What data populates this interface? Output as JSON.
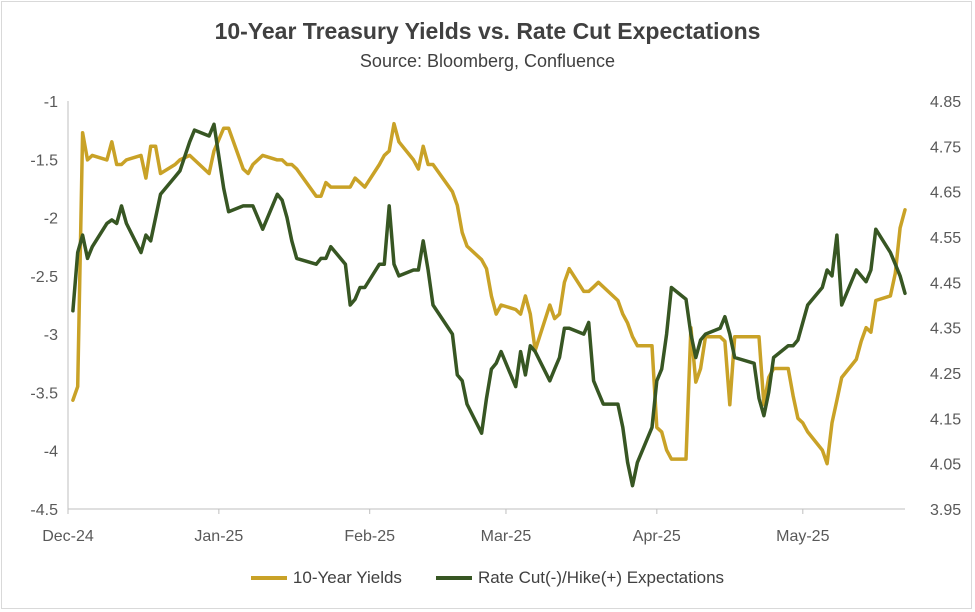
{
  "chart_data": {
    "type": "line",
    "title": "10-Year Treasury Yields vs. Rate Cut Expectations",
    "subtitle": "Source: Bloomberg, Confluence",
    "x_tick_labels": [
      "Dec-24",
      "Jan-25",
      "Feb-25",
      "Mar-25",
      "Apr-25",
      "May-25"
    ],
    "x_tick_dates": [
      "2024-12-01",
      "2025-01-01",
      "2025-02-01",
      "2025-03-01",
      "2025-04-01",
      "2025-05-01"
    ],
    "x_range": [
      "2024-12-01",
      "2025-05-22"
    ],
    "y_left": {
      "min": -4.5,
      "max": -1,
      "ticks": [
        "-1",
        "-1.5",
        "-2",
        "-2.5",
        "-3",
        "-3.5",
        "-4",
        "-4.5"
      ]
    },
    "y_right": {
      "min": 3.95,
      "max": 4.85,
      "ticks": [
        "4.85",
        "4.75",
        "4.65",
        "4.55",
        "4.45",
        "4.35",
        "4.25",
        "4.15",
        "4.05",
        "3.95"
      ]
    },
    "grid": false,
    "legend_position": "bottom",
    "series": [
      {
        "name": "10-Year Yields",
        "axis": "right",
        "color": "#C9A227",
        "points": [
          [
            "2024-12-02",
            4.19
          ],
          [
            "2024-12-03",
            4.22
          ],
          [
            "2024-12-04",
            4.78
          ],
          [
            "2024-12-05",
            4.72
          ],
          [
            "2024-12-06",
            4.73
          ],
          [
            "2024-12-09",
            4.72
          ],
          [
            "2024-12-10",
            4.76
          ],
          [
            "2024-12-11",
            4.71
          ],
          [
            "2024-12-12",
            4.71
          ],
          [
            "2024-12-13",
            4.72
          ],
          [
            "2024-12-16",
            4.73
          ],
          [
            "2024-12-17",
            4.68
          ],
          [
            "2024-12-18",
            4.75
          ],
          [
            "2024-12-19",
            4.75
          ],
          [
            "2024-12-20",
            4.69
          ],
          [
            "2024-12-23",
            4.71
          ],
          [
            "2024-12-24",
            4.72
          ],
          [
            "2024-12-26",
            4.73
          ],
          [
            "2024-12-27",
            4.72
          ],
          [
            "2024-12-30",
            4.69
          ],
          [
            "2024-12-31",
            4.74
          ],
          [
            "2025-01-02",
            4.79
          ],
          [
            "2025-01-03",
            4.79
          ],
          [
            "2025-01-06",
            4.7
          ],
          [
            "2025-01-07",
            4.69
          ],
          [
            "2025-01-08",
            4.71
          ],
          [
            "2025-01-10",
            4.73
          ],
          [
            "2025-01-13",
            4.72
          ],
          [
            "2025-01-14",
            4.72
          ],
          [
            "2025-01-15",
            4.71
          ],
          [
            "2025-01-16",
            4.71
          ],
          [
            "2025-01-17",
            4.7
          ],
          [
            "2025-01-21",
            4.64
          ],
          [
            "2025-01-22",
            4.64
          ],
          [
            "2025-01-23",
            4.67
          ],
          [
            "2025-01-24",
            4.66
          ],
          [
            "2025-01-27",
            4.66
          ],
          [
            "2025-01-28",
            4.66
          ],
          [
            "2025-01-29",
            4.68
          ],
          [
            "2025-01-30",
            4.67
          ],
          [
            "2025-01-31",
            4.66
          ],
          [
            "2025-02-03",
            4.71
          ],
          [
            "2025-02-04",
            4.73
          ],
          [
            "2025-02-05",
            4.74
          ],
          [
            "2025-02-06",
            4.8
          ],
          [
            "2025-02-07",
            4.76
          ],
          [
            "2025-02-10",
            4.72
          ],
          [
            "2025-02-11",
            4.7
          ],
          [
            "2025-02-12",
            4.75
          ],
          [
            "2025-02-13",
            4.71
          ],
          [
            "2025-02-14",
            4.71
          ],
          [
            "2025-02-18",
            4.65
          ],
          [
            "2025-02-19",
            4.62
          ],
          [
            "2025-02-20",
            4.56
          ],
          [
            "2025-02-21",
            4.53
          ],
          [
            "2025-02-24",
            4.5
          ],
          [
            "2025-02-25",
            4.48
          ],
          [
            "2025-02-26",
            4.42
          ],
          [
            "2025-02-27",
            4.38
          ],
          [
            "2025-02-28",
            4.4
          ],
          [
            "2025-03-03",
            4.39
          ],
          [
            "2025-03-04",
            4.38
          ],
          [
            "2025-03-05",
            4.42
          ],
          [
            "2025-03-06",
            4.38
          ],
          [
            "2025-03-07",
            4.3
          ],
          [
            "2025-03-10",
            4.4
          ],
          [
            "2025-03-11",
            4.37
          ],
          [
            "2025-03-12",
            4.38
          ],
          [
            "2025-03-13",
            4.45
          ],
          [
            "2025-03-14",
            4.48
          ],
          [
            "2025-03-17",
            4.43
          ],
          [
            "2025-03-18",
            4.43
          ],
          [
            "2025-03-19",
            4.44
          ],
          [
            "2025-03-20",
            4.45
          ],
          [
            "2025-03-21",
            4.44
          ],
          [
            "2025-03-24",
            4.41
          ],
          [
            "2025-03-25",
            4.38
          ],
          [
            "2025-03-26",
            4.36
          ],
          [
            "2025-03-27",
            4.33
          ],
          [
            "2025-03-28",
            4.31
          ],
          [
            "2025-03-31",
            4.31
          ],
          [
            "2025-04-01",
            4.13
          ],
          [
            "2025-04-02",
            4.12
          ],
          [
            "2025-04-03",
            4.08
          ],
          [
            "2025-04-04",
            4.06
          ],
          [
            "2025-04-07",
            4.06
          ],
          [
            "2025-04-08",
            4.35
          ],
          [
            "2025-04-09",
            4.23
          ],
          [
            "2025-04-10",
            4.26
          ],
          [
            "2025-04-11",
            4.33
          ],
          [
            "2025-04-14",
            4.33
          ],
          [
            "2025-04-15",
            4.32
          ],
          [
            "2025-04-16",
            4.18
          ],
          [
            "2025-04-17",
            4.33
          ],
          [
            "2025-04-21",
            4.33
          ],
          [
            "2025-04-22",
            4.33
          ],
          [
            "2025-04-23",
            4.18
          ],
          [
            "2025-04-24",
            4.24
          ],
          [
            "2025-04-25",
            4.26
          ],
          [
            "2025-04-28",
            4.26
          ],
          [
            "2025-04-29",
            4.2
          ],
          [
            "2025-04-30",
            4.15
          ],
          [
            "2025-05-01",
            4.14
          ],
          [
            "2025-05-02",
            4.12
          ],
          [
            "2025-05-05",
            4.08
          ],
          [
            "2025-05-06",
            4.05
          ],
          [
            "2025-05-07",
            4.14
          ],
          [
            "2025-05-08",
            4.19
          ],
          [
            "2025-05-09",
            4.24
          ],
          [
            "2025-05-12",
            4.28
          ],
          [
            "2025-05-13",
            4.32
          ],
          [
            "2025-05-14",
            4.35
          ],
          [
            "2025-05-15",
            4.34
          ],
          [
            "2025-05-16",
            4.41
          ],
          [
            "2025-05-19",
            4.42
          ],
          [
            "2025-05-20",
            4.47
          ],
          [
            "2025-05-21",
            4.57
          ],
          [
            "2025-05-22",
            4.61
          ]
        ]
      },
      {
        "name": "Rate Cut(-)/Hike(+) Expectations",
        "axis": "left",
        "color": "#375623",
        "points": [
          [
            "2024-12-02",
            -2.8
          ],
          [
            "2024-12-03",
            -2.3
          ],
          [
            "2024-12-04",
            -2.15
          ],
          [
            "2024-12-05",
            -2.35
          ],
          [
            "2024-12-06",
            -2.25
          ],
          [
            "2024-12-09",
            -2.05
          ],
          [
            "2024-12-10",
            -2.02
          ],
          [
            "2024-12-11",
            -2.05
          ],
          [
            "2024-12-12",
            -1.9
          ],
          [
            "2024-12-13",
            -2.05
          ],
          [
            "2024-12-16",
            -2.3
          ],
          [
            "2024-12-17",
            -2.15
          ],
          [
            "2024-12-18",
            -2.2
          ],
          [
            "2024-12-19",
            -2.0
          ],
          [
            "2024-12-20",
            -1.8
          ],
          [
            "2024-12-23",
            -1.65
          ],
          [
            "2024-12-24",
            -1.6
          ],
          [
            "2024-12-26",
            -1.35
          ],
          [
            "2024-12-27",
            -1.25
          ],
          [
            "2024-12-30",
            -1.3
          ],
          [
            "2024-12-31",
            -1.2
          ],
          [
            "2025-01-02",
            -1.75
          ],
          [
            "2025-01-03",
            -1.95
          ],
          [
            "2025-01-06",
            -1.9
          ],
          [
            "2025-01-07",
            -1.9
          ],
          [
            "2025-01-08",
            -1.9
          ],
          [
            "2025-01-10",
            -2.1
          ],
          [
            "2025-01-13",
            -1.8
          ],
          [
            "2025-01-14",
            -1.85
          ],
          [
            "2025-01-15",
            -2.0
          ],
          [
            "2025-01-16",
            -2.2
          ],
          [
            "2025-01-17",
            -2.35
          ],
          [
            "2025-01-21",
            -2.4
          ],
          [
            "2025-01-22",
            -2.35
          ],
          [
            "2025-01-23",
            -2.35
          ],
          [
            "2025-01-24",
            -2.25
          ],
          [
            "2025-01-27",
            -2.4
          ],
          [
            "2025-01-28",
            -2.75
          ],
          [
            "2025-01-29",
            -2.7
          ],
          [
            "2025-01-30",
            -2.6
          ],
          [
            "2025-01-31",
            -2.6
          ],
          [
            "2025-02-03",
            -2.4
          ],
          [
            "2025-02-04",
            -2.4
          ],
          [
            "2025-02-05",
            -1.9
          ],
          [
            "2025-02-06",
            -2.4
          ],
          [
            "2025-02-07",
            -2.5
          ],
          [
            "2025-02-10",
            -2.45
          ],
          [
            "2025-02-11",
            -2.45
          ],
          [
            "2025-02-12",
            -2.2
          ],
          [
            "2025-02-13",
            -2.45
          ],
          [
            "2025-02-14",
            -2.75
          ],
          [
            "2025-02-18",
            -3.0
          ],
          [
            "2025-02-19",
            -3.35
          ],
          [
            "2025-02-20",
            -3.4
          ],
          [
            "2025-02-21",
            -3.6
          ],
          [
            "2025-02-24",
            -3.85
          ],
          [
            "2025-02-25",
            -3.55
          ],
          [
            "2025-02-26",
            -3.3
          ],
          [
            "2025-02-27",
            -3.25
          ],
          [
            "2025-02-28",
            -3.15
          ],
          [
            "2025-03-03",
            -3.45
          ],
          [
            "2025-03-04",
            -3.15
          ],
          [
            "2025-03-05",
            -3.35
          ],
          [
            "2025-03-06",
            -3.1
          ],
          [
            "2025-03-07",
            -3.15
          ],
          [
            "2025-03-10",
            -3.4
          ],
          [
            "2025-03-11",
            -3.3
          ],
          [
            "2025-03-12",
            -3.2
          ],
          [
            "2025-03-13",
            -2.95
          ],
          [
            "2025-03-14",
            -2.95
          ],
          [
            "2025-03-17",
            -3.0
          ],
          [
            "2025-03-18",
            -2.9
          ],
          [
            "2025-03-19",
            -3.4
          ],
          [
            "2025-03-20",
            -3.5
          ],
          [
            "2025-03-21",
            -3.6
          ],
          [
            "2025-03-24",
            -3.6
          ],
          [
            "2025-03-25",
            -3.8
          ],
          [
            "2025-03-26",
            -4.1
          ],
          [
            "2025-03-27",
            -4.3
          ],
          [
            "2025-03-28",
            -4.1
          ],
          [
            "2025-03-31",
            -3.8
          ],
          [
            "2025-04-01",
            -3.4
          ],
          [
            "2025-04-02",
            -3.3
          ],
          [
            "2025-04-03",
            -3.0
          ],
          [
            "2025-04-04",
            -2.6
          ],
          [
            "2025-04-07",
            -2.7
          ],
          [
            "2025-04-08",
            -3.0
          ],
          [
            "2025-04-09",
            -3.2
          ],
          [
            "2025-04-10",
            -3.05
          ],
          [
            "2025-04-11",
            -3.0
          ],
          [
            "2025-04-14",
            -2.95
          ],
          [
            "2025-04-15",
            -2.85
          ],
          [
            "2025-04-16",
            -3.0
          ],
          [
            "2025-04-17",
            -3.2
          ],
          [
            "2025-04-21",
            -3.25
          ],
          [
            "2025-04-22",
            -3.55
          ],
          [
            "2025-04-23",
            -3.7
          ],
          [
            "2025-04-24",
            -3.5
          ],
          [
            "2025-04-25",
            -3.2
          ],
          [
            "2025-04-28",
            -3.1
          ],
          [
            "2025-04-29",
            -3.1
          ],
          [
            "2025-04-30",
            -3.05
          ],
          [
            "2025-05-01",
            -2.9
          ],
          [
            "2025-05-02",
            -2.75
          ],
          [
            "2025-05-05",
            -2.6
          ],
          [
            "2025-05-06",
            -2.45
          ],
          [
            "2025-05-07",
            -2.5
          ],
          [
            "2025-05-08",
            -2.15
          ],
          [
            "2025-05-09",
            -2.75
          ],
          [
            "2025-05-12",
            -2.45
          ],
          [
            "2025-05-13",
            -2.5
          ],
          [
            "2025-05-14",
            -2.55
          ],
          [
            "2025-05-15",
            -2.45
          ],
          [
            "2025-05-16",
            -2.1
          ],
          [
            "2025-05-19",
            -2.3
          ],
          [
            "2025-05-20",
            -2.4
          ],
          [
            "2025-05-21",
            -2.5
          ],
          [
            "2025-05-22",
            -2.65
          ]
        ]
      }
    ]
  }
}
